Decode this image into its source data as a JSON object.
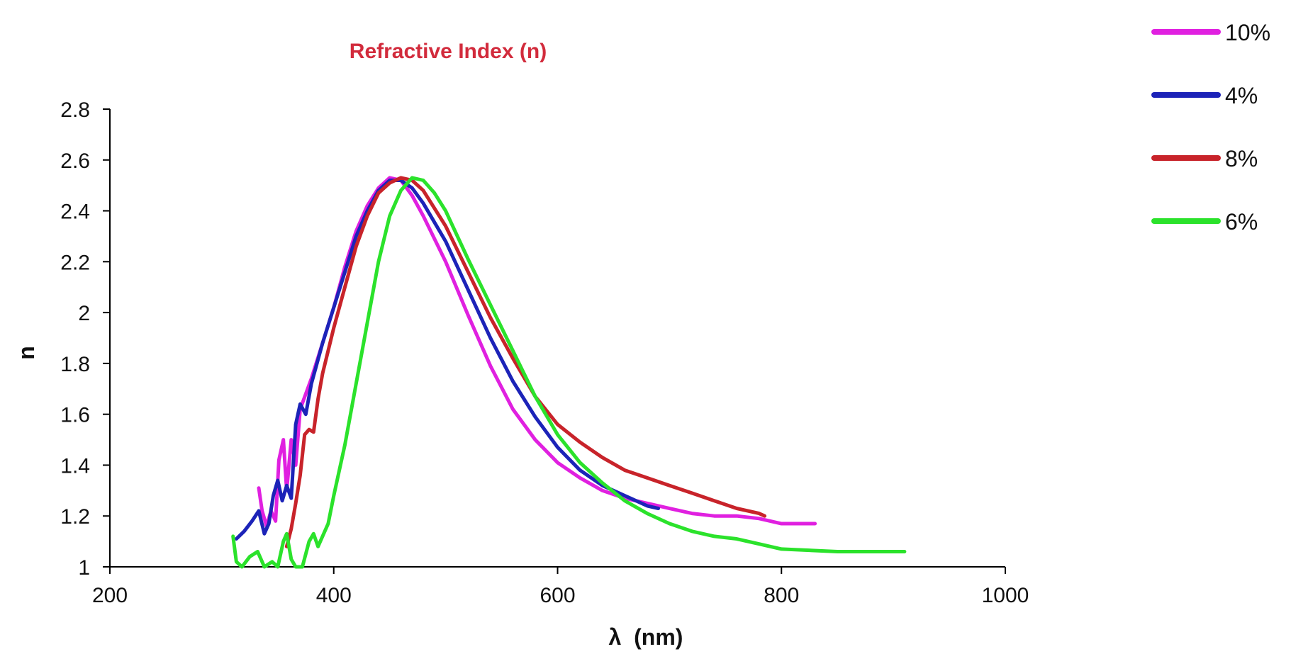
{
  "chart_data": {
    "type": "line",
    "title": "Refractive Index (n)",
    "xlabel": "λ  (nm)",
    "ylabel": "n",
    "xlim": [
      200,
      1000
    ],
    "ylim": [
      1,
      2.8
    ],
    "xticks": [
      200,
      400,
      600,
      800,
      1000
    ],
    "xtick_labels": [
      "200",
      "400",
      "600",
      "800",
      "1000"
    ],
    "yticks": [
      1,
      1.2,
      1.4,
      1.6,
      1.8,
      2,
      2.2,
      2.4,
      2.6,
      2.8
    ],
    "ytick_labels": [
      "1",
      "1.2",
      "1.4",
      "1.6",
      "1.8",
      "2",
      "2.2",
      "2.4",
      "2.6",
      "2.8"
    ],
    "grid": false,
    "legend_position": "top-right",
    "series": [
      {
        "name": "10%",
        "color": "#e020e0",
        "points": [
          [
            333,
            1.31
          ],
          [
            336,
            1.22
          ],
          [
            340,
            1.16
          ],
          [
            344,
            1.22
          ],
          [
            348,
            1.18
          ],
          [
            351,
            1.42
          ],
          [
            355,
            1.5
          ],
          [
            358,
            1.3
          ],
          [
            362,
            1.5
          ],
          [
            366,
            1.4
          ],
          [
            370,
            1.62
          ],
          [
            380,
            1.74
          ],
          [
            390,
            1.88
          ],
          [
            400,
            2.02
          ],
          [
            410,
            2.18
          ],
          [
            420,
            2.32
          ],
          [
            430,
            2.42
          ],
          [
            440,
            2.49
          ],
          [
            450,
            2.53
          ],
          [
            460,
            2.52
          ],
          [
            470,
            2.46
          ],
          [
            480,
            2.38
          ],
          [
            500,
            2.2
          ],
          [
            520,
            1.99
          ],
          [
            540,
            1.79
          ],
          [
            560,
            1.62
          ],
          [
            580,
            1.5
          ],
          [
            600,
            1.41
          ],
          [
            620,
            1.35
          ],
          [
            640,
            1.3
          ],
          [
            660,
            1.27
          ],
          [
            680,
            1.25
          ],
          [
            700,
            1.23
          ],
          [
            720,
            1.21
          ],
          [
            740,
            1.2
          ],
          [
            760,
            1.2
          ],
          [
            780,
            1.19
          ],
          [
            800,
            1.17
          ],
          [
            830,
            1.17
          ]
        ]
      },
      {
        "name": "4%",
        "color": "#1c23b8",
        "points": [
          [
            313,
            1.11
          ],
          [
            320,
            1.14
          ],
          [
            327,
            1.18
          ],
          [
            333,
            1.22
          ],
          [
            338,
            1.13
          ],
          [
            342,
            1.17
          ],
          [
            346,
            1.28
          ],
          [
            350,
            1.34
          ],
          [
            354,
            1.26
          ],
          [
            358,
            1.32
          ],
          [
            362,
            1.27
          ],
          [
            366,
            1.56
          ],
          [
            370,
            1.64
          ],
          [
            375,
            1.6
          ],
          [
            380,
            1.72
          ],
          [
            390,
            1.88
          ],
          [
            400,
            2.02
          ],
          [
            410,
            2.16
          ],
          [
            420,
            2.3
          ],
          [
            430,
            2.4
          ],
          [
            440,
            2.48
          ],
          [
            450,
            2.52
          ],
          [
            460,
            2.52
          ],
          [
            470,
            2.49
          ],
          [
            480,
            2.43
          ],
          [
            500,
            2.28
          ],
          [
            520,
            2.09
          ],
          [
            540,
            1.9
          ],
          [
            560,
            1.73
          ],
          [
            580,
            1.59
          ],
          [
            600,
            1.47
          ],
          [
            620,
            1.38
          ],
          [
            640,
            1.32
          ],
          [
            660,
            1.28
          ],
          [
            680,
            1.24
          ],
          [
            690,
            1.23
          ]
        ]
      },
      {
        "name": "8%",
        "color": "#c8232a",
        "points": [
          [
            358,
            1.08
          ],
          [
            362,
            1.15
          ],
          [
            366,
            1.25
          ],
          [
            370,
            1.36
          ],
          [
            374,
            1.52
          ],
          [
            378,
            1.54
          ],
          [
            382,
            1.53
          ],
          [
            386,
            1.66
          ],
          [
            390,
            1.76
          ],
          [
            400,
            1.94
          ],
          [
            410,
            2.1
          ],
          [
            420,
            2.26
          ],
          [
            430,
            2.38
          ],
          [
            440,
            2.47
          ],
          [
            450,
            2.51
          ],
          [
            460,
            2.53
          ],
          [
            470,
            2.52
          ],
          [
            480,
            2.48
          ],
          [
            500,
            2.34
          ],
          [
            520,
            2.16
          ],
          [
            540,
            1.98
          ],
          [
            560,
            1.82
          ],
          [
            580,
            1.67
          ],
          [
            600,
            1.56
          ],
          [
            620,
            1.49
          ],
          [
            640,
            1.43
          ],
          [
            660,
            1.38
          ],
          [
            680,
            1.35
          ],
          [
            700,
            1.32
          ],
          [
            720,
            1.29
          ],
          [
            740,
            1.26
          ],
          [
            760,
            1.23
          ],
          [
            780,
            1.21
          ],
          [
            785,
            1.2
          ]
        ]
      },
      {
        "name": "6%",
        "color": "#2be22b",
        "points": [
          [
            310,
            1.12
          ],
          [
            313,
            1.02
          ],
          [
            318,
            1.0
          ],
          [
            325,
            1.04
          ],
          [
            332,
            1.06
          ],
          [
            338,
            1.0
          ],
          [
            345,
            1.02
          ],
          [
            350,
            1.0
          ],
          [
            355,
            1.1
          ],
          [
            358,
            1.13
          ],
          [
            362,
            1.03
          ],
          [
            366,
            1.0
          ],
          [
            372,
            1.0
          ],
          [
            378,
            1.1
          ],
          [
            382,
            1.13
          ],
          [
            386,
            1.08
          ],
          [
            390,
            1.12
          ],
          [
            395,
            1.17
          ],
          [
            400,
            1.28
          ],
          [
            410,
            1.48
          ],
          [
            420,
            1.72
          ],
          [
            430,
            1.96
          ],
          [
            440,
            2.2
          ],
          [
            450,
            2.38
          ],
          [
            460,
            2.48
          ],
          [
            470,
            2.53
          ],
          [
            480,
            2.52
          ],
          [
            490,
            2.47
          ],
          [
            500,
            2.4
          ],
          [
            520,
            2.21
          ],
          [
            540,
            2.03
          ],
          [
            560,
            1.85
          ],
          [
            580,
            1.67
          ],
          [
            600,
            1.52
          ],
          [
            620,
            1.41
          ],
          [
            640,
            1.33
          ],
          [
            660,
            1.26
          ],
          [
            680,
            1.21
          ],
          [
            700,
            1.17
          ],
          [
            720,
            1.14
          ],
          [
            740,
            1.12
          ],
          [
            760,
            1.11
          ],
          [
            780,
            1.09
          ],
          [
            800,
            1.07
          ],
          [
            850,
            1.06
          ],
          [
            910,
            1.06
          ]
        ]
      }
    ]
  }
}
